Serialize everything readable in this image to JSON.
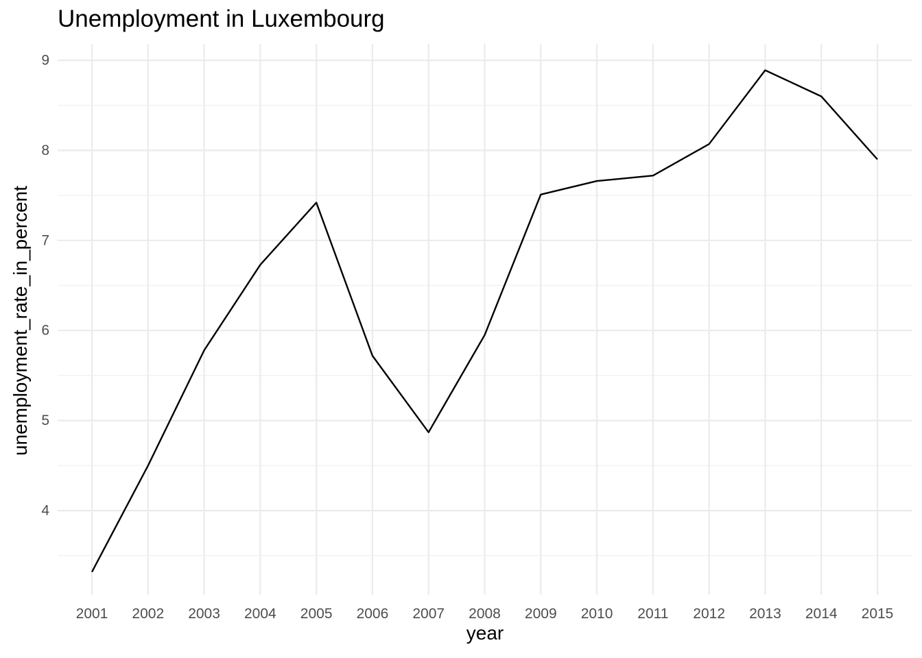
{
  "chart_data": {
    "type": "line",
    "title": "Unemployment in Luxembourg",
    "xlabel": "year",
    "ylabel": "unemployment_rate_in_percent",
    "x": [
      "2001",
      "2002",
      "2003",
      "2004",
      "2005",
      "2006",
      "2007",
      "2008",
      "2009",
      "2010",
      "2011",
      "2012",
      "2013",
      "2014",
      "2015"
    ],
    "series": [
      {
        "values": [
          3.32,
          4.5,
          5.78,
          6.73,
          7.42,
          5.72,
          4.87,
          5.95,
          7.51,
          7.66,
          7.72,
          8.07,
          8.89,
          8.6,
          7.9
        ]
      }
    ],
    "y_ticks": [
      "4",
      "5",
      "6",
      "7",
      "8",
      "9"
    ],
    "ylim": [
      3.0,
      9.3
    ],
    "grid": true,
    "legend": "none",
    "colors": {
      "line": "#000000",
      "grid_major": "#ebebeb",
      "grid_minor": "#f2f2f2",
      "tick_text": "#4d4d4d"
    }
  }
}
